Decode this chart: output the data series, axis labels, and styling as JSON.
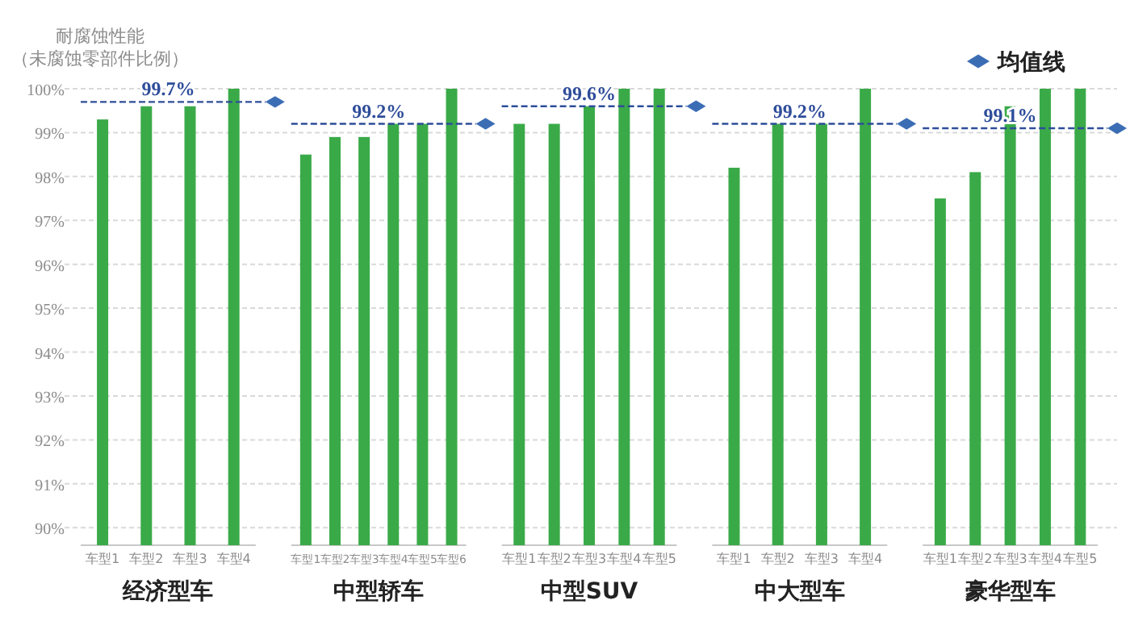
{
  "chart_data": [
    {
      "type": "bar",
      "ylabel": "耐腐蚀性能（未腐蚀零部件比例）",
      "xlabel": "经济型车",
      "categories": [
        "车型1",
        "车型2",
        "车型3",
        "车型4"
      ],
      "values": [
        99.3,
        99.6,
        99.6,
        100
      ],
      "color": "#3aaa48",
      "ylim": [
        89.6,
        100
      ],
      "yticks": [
        {
          "value": 90,
          "label": "90%"
        },
        {
          "value": 91,
          "label": "91%"
        },
        {
          "value": 92,
          "label": "92%"
        },
        {
          "value": 93,
          "label": "93%"
        },
        {
          "value": 94,
          "label": "94%"
        },
        {
          "value": 95,
          "label": "95%"
        },
        {
          "value": 96,
          "label": "96%"
        },
        {
          "value": 97,
          "label": "97%"
        },
        {
          "value": 98,
          "label": "98%"
        },
        {
          "value": 99,
          "label": "99%"
        },
        {
          "value": 100,
          "label": "100%"
        }
      ],
      "grid": "y",
      "ref_lines": [
        {
          "axis": "y",
          "value": 99.7,
          "label": "99.7%",
          "color": "#2e4d9a",
          "line_style": "dashed"
        }
      ]
    },
    {
      "type": "bar",
      "xlabel": "中型轿车",
      "categories": [
        "车型1",
        "车型2",
        "车型3",
        "车型4",
        "车型5",
        "车型6"
      ],
      "values": [
        98.5,
        98.9,
        98.9,
        99.2,
        99.2,
        100
      ],
      "color": "#3aaa48",
      "ylim": [
        89.6,
        100
      ],
      "tick_labels": "x",
      "ref_lines": [
        {
          "axis": "y",
          "value": 99.2,
          "label": "99.2%",
          "color": "#2e4d9a",
          "line_style": "dashed"
        }
      ]
    },
    {
      "type": "bar",
      "xlabel": "中型SUV",
      "categories": [
        "车型1",
        "车型2",
        "车型3",
        "车型4",
        "车型5"
      ],
      "values": [
        99.2,
        99.2,
        99.6,
        100,
        100
      ],
      "color": "#3aaa48",
      "ylim": [
        89.6,
        100
      ],
      "tick_labels": "x",
      "ref_lines": [
        {
          "axis": "y",
          "value": 99.6,
          "label": "99.6%",
          "color": "#2e4d9a",
          "line_style": "dashed"
        }
      ]
    },
    {
      "type": "bar",
      "xlabel": "中大型车",
      "categories": [
        "车型1",
        "车型2",
        "车型3",
        "车型4"
      ],
      "values": [
        98.2,
        99.2,
        99.2,
        100
      ],
      "color": "#3aaa48",
      "ylim": [
        89.6,
        100
      ],
      "tick_labels": "x",
      "ref_lines": [
        {
          "axis": "y",
          "value": 99.2,
          "label": "99.2%",
          "color": "#2e4d9a",
          "line_style": "dashed"
        }
      ]
    },
    {
      "type": "bar",
      "xlabel": "豪华型车",
      "categories": [
        "车型1",
        "车型2",
        "车型3",
        "车型4",
        "车型5"
      ],
      "values": [
        97.5,
        98.1,
        99.6,
        100,
        100
      ],
      "color": "#3aaa48",
      "ylim": [
        89.6,
        100
      ],
      "tick_labels": "x",
      "ref_lines": [
        {
          "axis": "y",
          "value": 99.1,
          "label": "99.1%",
          "color": "#2e4d9a",
          "line_style": "dashed"
        }
      ],
      "annotations": [
        "均值线"
      ]
    }
  ]
}
